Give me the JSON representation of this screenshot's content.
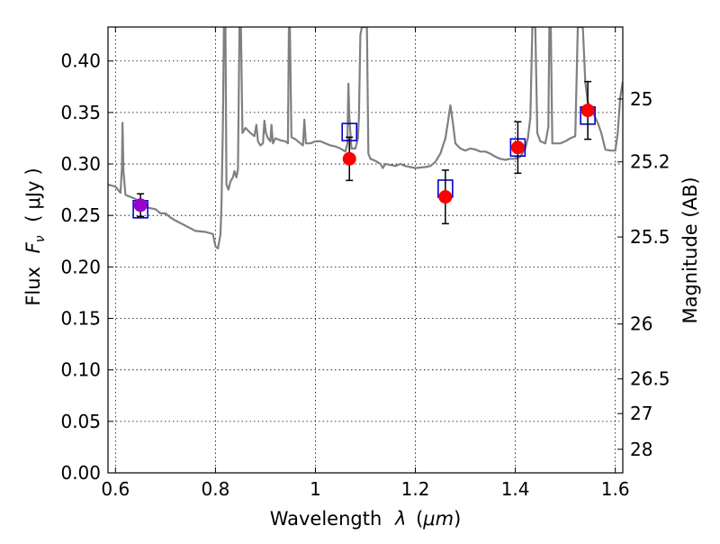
{
  "chart_data": {
    "type": "scatter",
    "xlabel_text": "Wavelength",
    "xlabel_symbol": "λ",
    "xlabel_unit": "μm",
    "ylabel_text": "Flux",
    "ylabel_symbol": "F",
    "ylabel_subscript": "ν",
    "ylabel_unit": "μJy",
    "ylabel_right": "Magnitude (AB)",
    "xlim": [
      0.585,
      1.615
    ],
    "ylim": [
      0.0,
      0.433
    ],
    "grid": true,
    "xticks": [
      0.6,
      0.8,
      1.0,
      1.2,
      1.4,
      1.6
    ],
    "xtick_labels": [
      "0.6",
      "0.8",
      "1",
      "1.2",
      "1.4",
      "1.6"
    ],
    "yticks": [
      0.0,
      0.05,
      0.1,
      0.15,
      0.2,
      0.25,
      0.3,
      0.35,
      0.4
    ],
    "ytick_labels": [
      "0.00",
      "0.05",
      "0.10",
      "0.15",
      "0.20",
      "0.25",
      "0.30",
      "0.35",
      "0.40"
    ],
    "right_ticks": [
      {
        "mag": 25,
        "label": "25"
      },
      {
        "mag": 25.2,
        "label": "25.2"
      },
      {
        "mag": 25.5,
        "label": "25.5"
      },
      {
        "mag": 26,
        "label": "26"
      },
      {
        "mag": 26.5,
        "label": "26.5"
      },
      {
        "mag": 27,
        "label": "27"
      },
      {
        "mag": 28,
        "label": "28"
      }
    ],
    "colors": {
      "spectrum": "#808080",
      "model": "#0000cc",
      "observed": "#ff0000",
      "observed_first": "#9900cc",
      "errorbar": "#000000"
    },
    "series": [
      {
        "kind": "spectrum",
        "points": [
          [
            0.585,
            0.28
          ],
          [
            0.6,
            0.278
          ],
          [
            0.61,
            0.272
          ],
          [
            0.613,
            0.296
          ],
          [
            0.614,
            0.34
          ],
          [
            0.616,
            0.293
          ],
          [
            0.62,
            0.27
          ],
          [
            0.64,
            0.266
          ],
          [
            0.66,
            0.258
          ],
          [
            0.68,
            0.256
          ],
          [
            0.69,
            0.252
          ],
          [
            0.7,
            0.252
          ],
          [
            0.71,
            0.248
          ],
          [
            0.72,
            0.245
          ],
          [
            0.74,
            0.24
          ],
          [
            0.76,
            0.235
          ],
          [
            0.78,
            0.234
          ],
          [
            0.795,
            0.232
          ],
          [
            0.8,
            0.22
          ],
          [
            0.805,
            0.218
          ],
          [
            0.81,
            0.232
          ],
          [
            0.812,
            0.26
          ],
          [
            0.815,
            0.34
          ],
          [
            0.817,
            0.433
          ],
          [
            0.82,
            0.433
          ],
          [
            0.822,
            0.28
          ],
          [
            0.826,
            0.275
          ],
          [
            0.83,
            0.283
          ],
          [
            0.835,
            0.287
          ],
          [
            0.838,
            0.293
          ],
          [
            0.842,
            0.287
          ],
          [
            0.845,
            0.295
          ],
          [
            0.848,
            0.433
          ],
          [
            0.851,
            0.433
          ],
          [
            0.854,
            0.33
          ],
          [
            0.86,
            0.335
          ],
          [
            0.87,
            0.33
          ],
          [
            0.878,
            0.327
          ],
          [
            0.882,
            0.338
          ],
          [
            0.885,
            0.322
          ],
          [
            0.89,
            0.318
          ],
          [
            0.895,
            0.32
          ],
          [
            0.898,
            0.342
          ],
          [
            0.901,
            0.33
          ],
          [
            0.905,
            0.325
          ],
          [
            0.91,
            0.322
          ],
          [
            0.912,
            0.338
          ],
          [
            0.915,
            0.32
          ],
          [
            0.92,
            0.325
          ],
          [
            0.93,
            0.323
          ],
          [
            0.94,
            0.322
          ],
          [
            0.945,
            0.32
          ],
          [
            0.947,
            0.433
          ],
          [
            0.949,
            0.433
          ],
          [
            0.952,
            0.326
          ],
          [
            0.96,
            0.324
          ],
          [
            0.97,
            0.32
          ],
          [
            0.975,
            0.318
          ],
          [
            0.978,
            0.343
          ],
          [
            0.981,
            0.32
          ],
          [
            0.99,
            0.32
          ],
          [
            1.0,
            0.322
          ],
          [
            1.01,
            0.322
          ],
          [
            1.02,
            0.32
          ],
          [
            1.03,
            0.318
          ],
          [
            1.04,
            0.317
          ],
          [
            1.05,
            0.315
          ],
          [
            1.06,
            0.312
          ],
          [
            1.064,
            0.32
          ],
          [
            1.066,
            0.378
          ],
          [
            1.068,
            0.345
          ],
          [
            1.072,
            0.315
          ],
          [
            1.08,
            0.315
          ],
          [
            1.085,
            0.325
          ],
          [
            1.087,
            0.345
          ],
          [
            1.09,
            0.425
          ],
          [
            1.093,
            0.433
          ],
          [
            1.1,
            0.433
          ],
          [
            1.103,
            0.433
          ],
          [
            1.106,
            0.31
          ],
          [
            1.11,
            0.305
          ],
          [
            1.12,
            0.303
          ],
          [
            1.13,
            0.3
          ],
          [
            1.135,
            0.296
          ],
          [
            1.14,
            0.3
          ],
          [
            1.15,
            0.299
          ],
          [
            1.16,
            0.298
          ],
          [
            1.17,
            0.3
          ],
          [
            1.18,
            0.298
          ],
          [
            1.19,
            0.297
          ],
          [
            1.2,
            0.296
          ],
          [
            1.22,
            0.297
          ],
          [
            1.23,
            0.298
          ],
          [
            1.24,
            0.302
          ],
          [
            1.25,
            0.31
          ],
          [
            1.26,
            0.325
          ],
          [
            1.265,
            0.34
          ],
          [
            1.27,
            0.357
          ],
          [
            1.275,
            0.34
          ],
          [
            1.28,
            0.32
          ],
          [
            1.29,
            0.315
          ],
          [
            1.3,
            0.313
          ],
          [
            1.31,
            0.315
          ],
          [
            1.32,
            0.314
          ],
          [
            1.33,
            0.312
          ],
          [
            1.34,
            0.312
          ],
          [
            1.35,
            0.31
          ],
          [
            1.36,
            0.307
          ],
          [
            1.37,
            0.305
          ],
          [
            1.38,
            0.304
          ],
          [
            1.39,
            0.305
          ],
          [
            1.4,
            0.305
          ],
          [
            1.41,
            0.307
          ],
          [
            1.42,
            0.315
          ],
          [
            1.425,
            0.325
          ],
          [
            1.43,
            0.345
          ],
          [
            1.434,
            0.433
          ],
          [
            1.44,
            0.433
          ],
          [
            1.444,
            0.33
          ],
          [
            1.45,
            0.322
          ],
          [
            1.46,
            0.32
          ],
          [
            1.466,
            0.336
          ],
          [
            1.468,
            0.433
          ],
          [
            1.471,
            0.433
          ],
          [
            1.474,
            0.32
          ],
          [
            1.48,
            0.32
          ],
          [
            1.49,
            0.32
          ],
          [
            1.5,
            0.322
          ],
          [
            1.51,
            0.325
          ],
          [
            1.52,
            0.327
          ],
          [
            1.525,
            0.433
          ],
          [
            1.535,
            0.433
          ],
          [
            1.54,
            0.38
          ],
          [
            1.545,
            0.36
          ],
          [
            1.555,
            0.35
          ],
          [
            1.565,
            0.34
          ],
          [
            1.572,
            0.33
          ],
          [
            1.58,
            0.314
          ],
          [
            1.59,
            0.313
          ],
          [
            1.6,
            0.313
          ],
          [
            1.605,
            0.33
          ],
          [
            1.61,
            0.365
          ],
          [
            1.615,
            0.38
          ]
        ]
      },
      {
        "kind": "model_squares",
        "points": [
          [
            0.65,
            0.256
          ],
          [
            1.068,
            0.331
          ],
          [
            1.26,
            0.276
          ],
          [
            1.405,
            0.316
          ],
          [
            1.545,
            0.347
          ]
        ]
      },
      {
        "kind": "observed",
        "points": [
          {
            "x": 0.65,
            "y": 0.26,
            "err": 0.011
          },
          {
            "x": 1.068,
            "y": 0.305,
            "err": 0.021
          },
          {
            "x": 1.26,
            "y": 0.268,
            "err": 0.026
          },
          {
            "x": 1.405,
            "y": 0.316,
            "err": 0.025
          },
          {
            "x": 1.545,
            "y": 0.352,
            "err": 0.028
          }
        ]
      }
    ]
  }
}
